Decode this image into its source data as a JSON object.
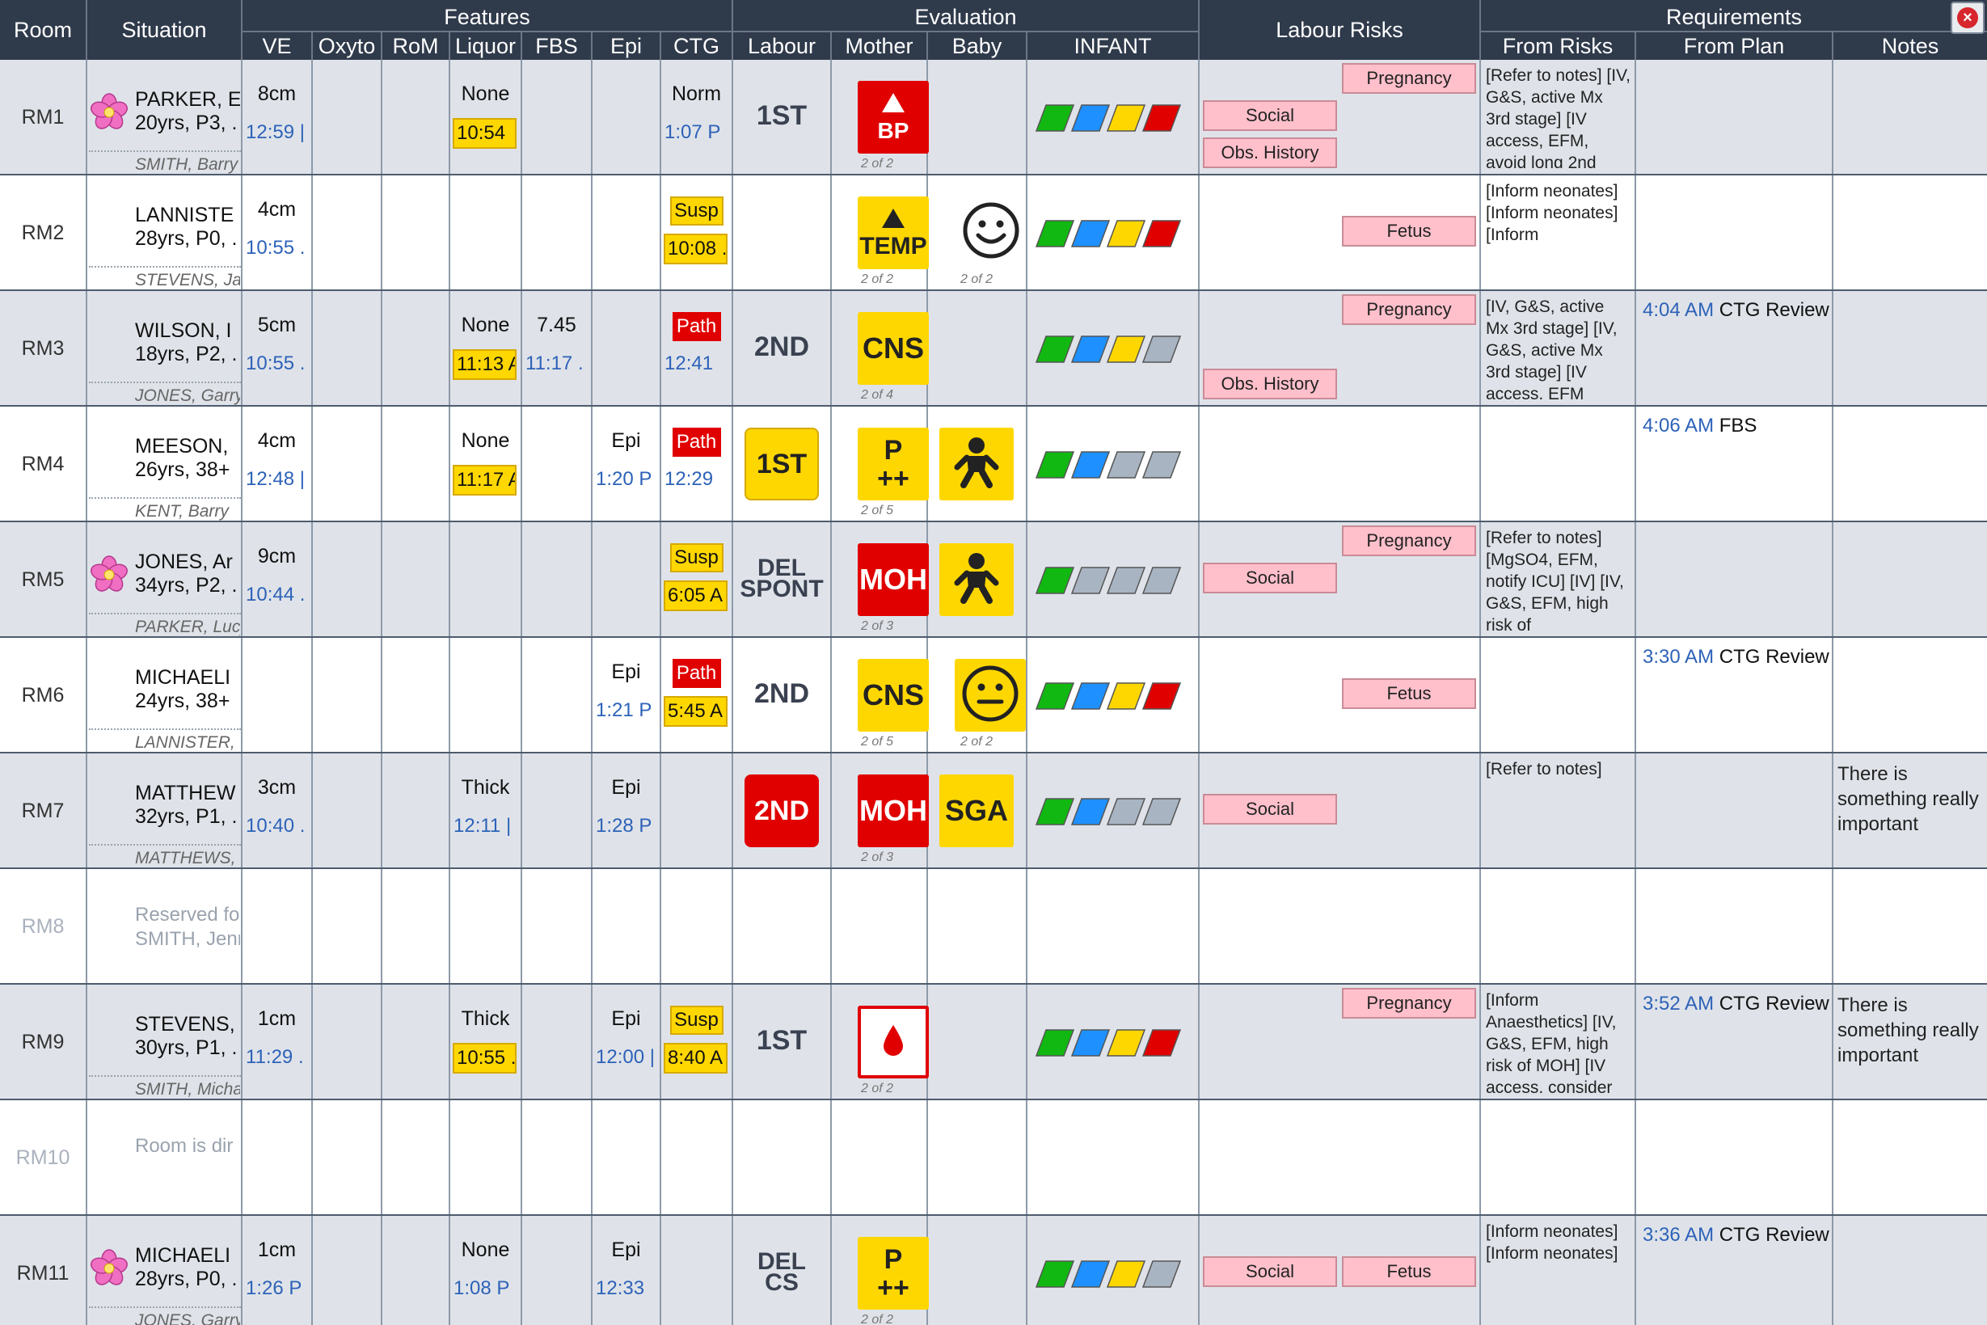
{
  "header": {
    "room": "Room",
    "situation": "Situation",
    "features": "Features",
    "evaluation": "Evaluation",
    "labour_risks": "Labour Risks",
    "requirements": "Requirements",
    "cols": {
      "ve": "VE",
      "oxyto": "Oxyto",
      "rom": "RoM",
      "liquor": "Liquor",
      "fbs": "FBS",
      "epi": "Epi",
      "ctg": "CTG",
      "labour": "Labour",
      "mother": "Mother",
      "baby": "Baby",
      "infant": "INFANT",
      "from_risks": "From Risks",
      "from_plan": "From Plan",
      "notes": "Notes"
    },
    "close_icon": "x-circle-icon"
  },
  "rows": [
    {
      "room": "RM1",
      "flower": true,
      "name": "PARKER, E",
      "details": "20yrs, P3, .",
      "midwife": "SMITH, Barry",
      "ve": {
        "top": "8cm",
        "bot": "12:59 |"
      },
      "liquor": {
        "top": "None",
        "bot": "10:54",
        "bot_style": "yellow"
      },
      "ctg": {
        "top": "Norm",
        "bot": "1:07 P"
      },
      "labour": {
        "text": "1ST",
        "style": "plain"
      },
      "mother": {
        "kind": "bp",
        "label": "BP",
        "count": "2 of 2",
        "color": "#e00000"
      },
      "infant": [
        "#11b811",
        "#1e90ff",
        "#ffd700",
        "#e00000"
      ],
      "risks": [
        {
          "label": "Pregnancy",
          "col": "right",
          "slot": 0
        },
        {
          "label": "Social",
          "col": "left",
          "slot": 1
        },
        {
          "label": "Obs. History",
          "col": "left",
          "slot": 2
        }
      ],
      "from_risks": "[Refer to notes] [IV, G&S, active Mx 3rd stage] [IV access, EFM, avoid long 2nd"
    },
    {
      "room": "RM2",
      "name": "LANNISTE",
      "details": "28yrs, P0, .",
      "midwife": "STEVENS, Jan",
      "ve": {
        "top": "4cm",
        "bot": "10:55 ."
      },
      "ctg": {
        "top": "Susp",
        "top_style": "yellow",
        "bot": "10:08 .",
        "bot_style": "yellow"
      },
      "mother": {
        "kind": "temp",
        "label": "TEMP",
        "count": "2 of 2",
        "color": "#ffd700"
      },
      "baby": {
        "kind": "smile",
        "count": "2 of 2"
      },
      "infant": [
        "#11b811",
        "#1e90ff",
        "#ffd700",
        "#e00000"
      ],
      "risks": [
        {
          "label": "Fetus",
          "col": "right",
          "slot": 1
        }
      ],
      "from_risks": "[Inform neonates] [Inform neonates] [Inform"
    },
    {
      "room": "RM3",
      "name": "WILSON, I",
      "details": "18yrs, P2, .",
      "midwife": "JONES, Garry",
      "ve": {
        "top": "5cm",
        "bot": "10:55 ."
      },
      "liquor": {
        "top": "None",
        "bot": "11:13 A",
        "bot_style": "yellow"
      },
      "fbs": {
        "top": "7.45",
        "bot": "11:17 ."
      },
      "ctg": {
        "top": "Path",
        "top_style": "red",
        "bot": "12:41"
      },
      "labour": {
        "text": "2ND",
        "style": "plain"
      },
      "mother": {
        "kind": "text",
        "label": "CNS",
        "count": "2 of 4",
        "color": "#ffd700"
      },
      "infant": [
        "#11b811",
        "#1e90ff",
        "#ffd700",
        "#a9b4c2"
      ],
      "risks": [
        {
          "label": "Pregnancy",
          "col": "right",
          "slot": 0
        },
        {
          "label": "Obs. History",
          "col": "left",
          "slot": 2
        }
      ],
      "from_risks": "[IV, G&S, active Mx 3rd stage] [IV, G&S, active Mx 3rd stage] [IV access, EFM",
      "plan": {
        "time": "4:04 AM",
        "label": "CTG Review"
      }
    },
    {
      "room": "RM4",
      "name": "MEESON,",
      "details": "26yrs, 38+",
      "midwife": "KENT, Barry",
      "ve": {
        "top": "4cm",
        "bot": "12:48 |"
      },
      "liquor": {
        "top": "None",
        "bot": "11:17 A",
        "bot_style": "yellow"
      },
      "epi": {
        "top": "Epi",
        "bot": "1:20 P"
      },
      "ctg": {
        "top": "Path",
        "top_style": "red",
        "bot": "12:29"
      },
      "labour": {
        "text": "1ST",
        "style": "yellow"
      },
      "mother": {
        "kind": "p",
        "label": "P",
        "sub": "++",
        "count": "2 of 5",
        "color": "#ffd700"
      },
      "baby": {
        "kind": "infant",
        "count": ""
      },
      "infant": [
        "#11b811",
        "#1e90ff",
        "#a9b4c2",
        "#a9b4c2"
      ],
      "plan": {
        "time": "4:06 AM",
        "label": "FBS"
      }
    },
    {
      "room": "RM5",
      "flower": true,
      "name": "JONES, Ar",
      "details": "34yrs, P2, .",
      "midwife": "PARKER, Lucy",
      "ve": {
        "top": "9cm",
        "bot": "10:44 ."
      },
      "ctg": {
        "top": "Susp",
        "top_style": "yellow",
        "bot": "6:05 A",
        "bot_style": "yellow"
      },
      "labour": {
        "text": "DEL",
        "text2": "SPONT",
        "style": "stack"
      },
      "mother": {
        "kind": "text",
        "label": "MOH",
        "count": "2 of 3",
        "color": "#e00000"
      },
      "baby": {
        "kind": "infant",
        "count": ""
      },
      "infant": [
        "#11b811",
        "#a9b4c2",
        "#a9b4c2",
        "#a9b4c2"
      ],
      "risks": [
        {
          "label": "Pregnancy",
          "col": "right",
          "slot": 0
        },
        {
          "label": "Social",
          "col": "left",
          "slot": 1
        }
      ],
      "from_risks": "[Refer to notes] [MgSO4, EFM, notify ICU] [IV] [IV, G&S, EFM, high risk of"
    },
    {
      "room": "RM6",
      "name": "MICHAELI",
      "details": "24yrs, 38+",
      "midwife": "LANNISTER, V",
      "epi": {
        "top": "Epi",
        "bot": "1:21 P"
      },
      "ctg": {
        "top": "Path",
        "top_style": "red",
        "bot": "5:45 A",
        "bot_style": "yellow"
      },
      "labour": {
        "text": "2ND",
        "style": "plain"
      },
      "mother": {
        "kind": "text",
        "label": "CNS",
        "count": "2 of 5",
        "color": "#ffd700"
      },
      "baby": {
        "kind": "neutral",
        "count": "2 of 2"
      },
      "infant": [
        "#11b811",
        "#1e90ff",
        "#ffd700",
        "#e00000"
      ],
      "risks": [
        {
          "label": "Fetus",
          "col": "right",
          "slot": 1
        }
      ],
      "plan": {
        "time": "3:30 AM",
        "label": "CTG Review"
      }
    },
    {
      "room": "RM7",
      "name": "MATTHEW",
      "details": "32yrs, P1, .",
      "midwife": "MATTHEWS, I",
      "ve": {
        "top": "3cm",
        "bot": "10:40 ."
      },
      "liquor": {
        "top": "Thick",
        "bot": "12:11 |"
      },
      "epi": {
        "top": "Epi",
        "bot": "1:28 P"
      },
      "labour": {
        "text": "2ND",
        "style": "red"
      },
      "mother": {
        "kind": "text",
        "label": "MOH",
        "count": "2 of 3",
        "color": "#e00000"
      },
      "baby": {
        "kind": "sga",
        "label": "SGA",
        "count": ""
      },
      "infant": [
        "#11b811",
        "#1e90ff",
        "#a9b4c2",
        "#a9b4c2"
      ],
      "risks": [
        {
          "label": "Social",
          "col": "left",
          "slot": 1
        }
      ],
      "from_risks": "[Refer to notes]",
      "notes": "There is something really important"
    },
    {
      "room": "RM8",
      "muted": true,
      "reserved": "Reserved fo",
      "reserved2": "SMITH, Jenn"
    },
    {
      "room": "RM9",
      "name": "STEVENS,",
      "details": "30yrs, P1, .",
      "midwife": "SMITH, Micha",
      "ve": {
        "top": "1cm",
        "bot": "11:29 ."
      },
      "liquor": {
        "top": "Thick",
        "bot": "10:55 .",
        "bot_style": "yellow"
      },
      "epi": {
        "top": "Epi",
        "bot": "12:00 |"
      },
      "ctg": {
        "top": "Susp",
        "top_style": "yellow",
        "bot": "8:40 A",
        "bot_style": "yellow"
      },
      "labour": {
        "text": "1ST",
        "style": "plain"
      },
      "mother": {
        "kind": "drop",
        "count": "2 of 2"
      },
      "infant": [
        "#11b811",
        "#1e90ff",
        "#ffd700",
        "#e00000"
      ],
      "risks": [
        {
          "label": "Pregnancy",
          "col": "right",
          "slot": 0
        }
      ],
      "from_risks": "[Inform Anaesthetics] [IV, G&S, EFM, high risk of MOH] [IV access, consider",
      "plan": {
        "time": "3:52 AM",
        "label": "CTG Review"
      },
      "notes": "There is something really important"
    },
    {
      "room": "RM10",
      "muted": true,
      "reserved": "Room is dir"
    },
    {
      "room": "RM11",
      "flower": true,
      "name": "MICHAELI",
      "details": "28yrs, P0, .",
      "midwife": "JONES, Garry",
      "ve": {
        "top": "1cm",
        "bot": "1:26 P"
      },
      "liquor": {
        "top": "None",
        "bot": "1:08 P"
      },
      "epi": {
        "top": "Epi",
        "bot": "12:33"
      },
      "labour": {
        "text": "DEL",
        "text2": "CS",
        "style": "stack"
      },
      "mother": {
        "kind": "p",
        "label": "P",
        "sub": "++",
        "count": "2 of 2",
        "color": "#ffd700"
      },
      "infant": [
        "#11b811",
        "#1e90ff",
        "#ffd700",
        "#a9b4c2"
      ],
      "risks": [
        {
          "label": "Social",
          "col": "left",
          "slot": 1
        },
        {
          "label": "Fetus",
          "col": "right",
          "slot": 1
        }
      ],
      "from_risks": "[Inform neonates] [Inform neonates]",
      "plan": {
        "time": "3:36 AM",
        "label": "CTG Review"
      }
    }
  ]
}
